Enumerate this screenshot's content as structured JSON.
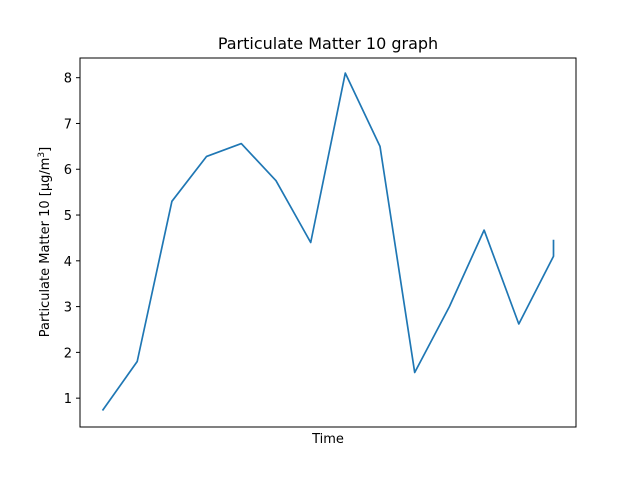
{
  "chart_data": {
    "type": "line",
    "title": "Particulate Matter 10 graph",
    "xlabel": "Time",
    "ylabel_main": "Particulate Matter 10 [µg/m",
    "ylabel_sup": "3",
    "ylabel_end": "]",
    "ylim": [
      0.37,
      8.43
    ],
    "yticks": [
      1,
      2,
      3,
      4,
      5,
      6,
      7,
      8
    ],
    "xlim": [
      -0.65,
      13.65
    ],
    "grid": false,
    "legend": "none",
    "line_color": "#1f77b4",
    "series": [
      {
        "x": [
          0,
          1,
          2,
          3,
          4,
          5,
          6,
          7,
          8,
          9,
          10,
          11,
          12,
          13,
          13
        ],
        "values": [
          0.73,
          1.8,
          5.3,
          6.28,
          6.56,
          5.75,
          4.4,
          8.1,
          6.5,
          1.56,
          3.0,
          4.67,
          2.62,
          4.1,
          4.46
        ]
      }
    ]
  }
}
